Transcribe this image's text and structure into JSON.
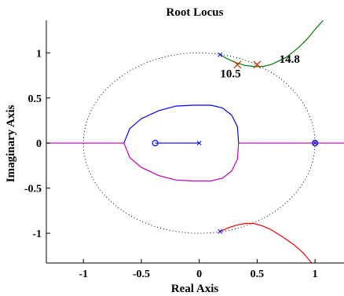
{
  "chart_data": {
    "type": "line",
    "title": "Root Locus",
    "xlabel": "Real Axis",
    "ylabel": "Imaginary Axis",
    "xlim": [
      -1.32,
      1.25
    ],
    "ylim": [
      -1.33,
      1.36
    ],
    "x_ticks": [
      {
        "value": -1,
        "label": "-1"
      },
      {
        "value": -0.5,
        "label": "-0.5"
      },
      {
        "value": 0,
        "label": "0"
      },
      {
        "value": 0.5,
        "label": "0.5"
      },
      {
        "value": 1,
        "label": "1"
      }
    ],
    "y_ticks": [
      {
        "value": 1,
        "label": "1"
      },
      {
        "value": 0.5,
        "label": "0.5"
      },
      {
        "value": 0,
        "label": "0"
      },
      {
        "value": -0.5,
        "label": "-0.5"
      },
      {
        "value": -1,
        "label": "-1"
      }
    ],
    "grid": false,
    "unit_circle": {
      "center": [
        0,
        0
      ],
      "radius": 1,
      "style": "dotted"
    },
    "colors": {
      "blue": "#0000ff",
      "magenta": "#bf00bf",
      "green": "#007f00",
      "red": "#ff0000",
      "annotation": "#cc3300"
    },
    "series": [
      {
        "color": "#0000ff",
        "points": [
          [
            -0.65,
            0
          ],
          [
            -0.6,
            0.16
          ],
          [
            -0.5,
            0.27
          ],
          [
            -0.35,
            0.36
          ],
          [
            -0.2,
            0.41
          ],
          [
            -0.05,
            0.42
          ],
          [
            0.1,
            0.42
          ],
          [
            0.2,
            0.39
          ],
          [
            0.28,
            0.31
          ],
          [
            0.33,
            0.18
          ],
          [
            0.34,
            0
          ]
        ]
      },
      {
        "color": "#bf00bf",
        "points": [
          [
            -0.65,
            0
          ],
          [
            -0.6,
            -0.16
          ],
          [
            -0.5,
            -0.27
          ],
          [
            -0.35,
            -0.36
          ],
          [
            -0.2,
            -0.41
          ],
          [
            -0.05,
            -0.42
          ],
          [
            0.1,
            -0.42
          ],
          [
            0.2,
            -0.39
          ],
          [
            0.28,
            -0.31
          ],
          [
            0.33,
            -0.18
          ],
          [
            0.34,
            0
          ]
        ]
      },
      {
        "color": "#0000ff",
        "points": [
          [
            -0.38,
            0
          ],
          [
            0,
            0
          ]
        ]
      },
      {
        "color": "#bf00bf",
        "points": [
          [
            -1.32,
            0
          ],
          [
            -0.65,
            0
          ]
        ]
      },
      {
        "color": "#bf00bf",
        "points": [
          [
            0.34,
            0
          ],
          [
            1.25,
            0
          ]
        ]
      },
      {
        "color": "#007f00",
        "points": [
          [
            0.18,
            0.98
          ],
          [
            0.25,
            0.93
          ],
          [
            0.32,
            0.89
          ],
          [
            0.4,
            0.86
          ],
          [
            0.47,
            0.85
          ],
          [
            0.55,
            0.85
          ],
          [
            0.62,
            0.87
          ],
          [
            0.75,
            0.95
          ],
          [
            0.85,
            1.05
          ],
          [
            0.93,
            1.15
          ],
          [
            1.0,
            1.26
          ],
          [
            1.07,
            1.36
          ]
        ]
      },
      {
        "color": "#ff0000",
        "points": [
          [
            0.18,
            -0.98
          ],
          [
            0.25,
            -0.94
          ],
          [
            0.32,
            -0.91
          ],
          [
            0.4,
            -0.89
          ],
          [
            0.47,
            -0.89
          ],
          [
            0.55,
            -0.92
          ],
          [
            0.62,
            -0.96
          ],
          [
            0.72,
            -1.04
          ],
          [
            0.82,
            -1.13
          ],
          [
            0.9,
            -1.22
          ],
          [
            0.97,
            -1.33
          ]
        ]
      }
    ],
    "poles": [
      [
        0.18,
        0.98
      ],
      [
        0.18,
        -0.98
      ],
      [
        0,
        0
      ],
      [
        1,
        0
      ]
    ],
    "zeros": [
      [
        -0.38,
        0
      ],
      [
        1,
        0
      ]
    ],
    "gain_markers": [
      [
        0.33,
        0.87
      ],
      [
        0.5,
        0.87
      ]
    ],
    "annotations": [
      {
        "text": "10.5",
        "x": 0.27,
        "y": 0.73
      },
      {
        "text": "14.8",
        "x": 0.78,
        "y": 0.89
      }
    ]
  }
}
